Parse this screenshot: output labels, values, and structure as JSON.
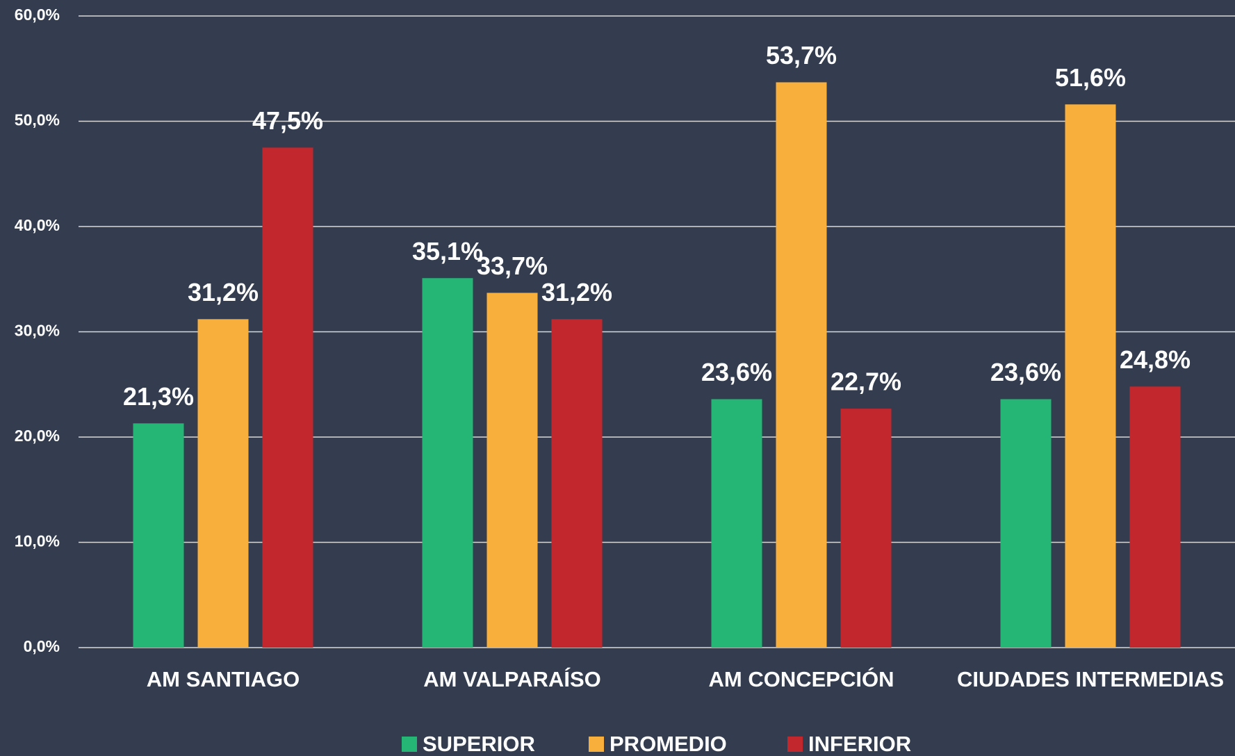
{
  "chart_data": {
    "type": "bar",
    "categories": [
      "AM SANTIAGO",
      "AM VALPARAÍSO",
      "AM CONCEPCIÓN",
      "CIUDADES INTERMEDIAS"
    ],
    "series": [
      {
        "name": "SUPERIOR",
        "color": "#25b574",
        "values": [
          21.3,
          35.1,
          23.6,
          23.6
        ],
        "value_labels": [
          "21,3%",
          "35,1%",
          "23,6%",
          "23,6%"
        ]
      },
      {
        "name": "PROMEDIO",
        "color": "#f9af3c",
        "values": [
          31.2,
          33.7,
          53.7,
          51.6
        ],
        "value_labels": [
          "31,2%",
          "33,7%",
          "53,7%",
          "51,6%"
        ]
      },
      {
        "name": "INFERIOR",
        "color": "#c1272d",
        "values": [
          47.5,
          31.2,
          22.7,
          24.8
        ],
        "value_labels": [
          "47,5%",
          "31,2%",
          "22,7%",
          "24,8%"
        ]
      }
    ],
    "ylim": [
      0,
      60
    ],
    "yticks": [
      {
        "value": 0,
        "label": "0,0%"
      },
      {
        "value": 10,
        "label": "10,0%"
      },
      {
        "value": 20,
        "label": "20,0%"
      },
      {
        "value": 30,
        "label": "30,0%"
      },
      {
        "value": 40,
        "label": "40,0%"
      },
      {
        "value": 50,
        "label": "50,0%"
      },
      {
        "value": 60,
        "label": "60,0%"
      }
    ],
    "grid": true,
    "legend": "bottom"
  }
}
